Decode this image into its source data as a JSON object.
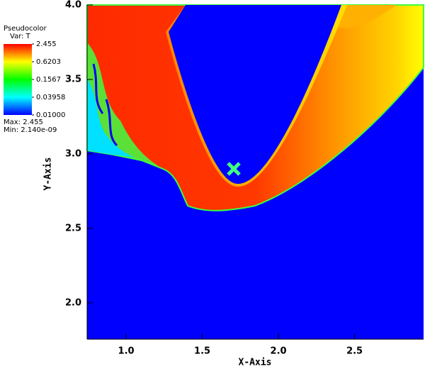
{
  "chart_data": {
    "type": "pseudocolor",
    "legend_title": "Pseudocolor",
    "legend_var": "Var: T",
    "legend_max": "Max:  2.455",
    "legend_min": "Min:  2.140e-09",
    "x_label": "X-Axis",
    "y_label": "Y-Axis",
    "xlim": [
      0.744,
      2.953
    ],
    "ylim": [
      1.756,
      4.0
    ],
    "xticks": [
      {
        "value": 1.0,
        "label": "1.0"
      },
      1.5,
      {
        "value": 2.0,
        "label": "2.0"
      },
      2.5
    ],
    "yticks": [
      {
        "value": 2.0,
        "label": "2.0"
      },
      2.5,
      {
        "value": 3.0,
        "label": "3.0"
      },
      3.5,
      {
        "value": 4.0,
        "label": "4.0"
      }
    ],
    "colorbar": {
      "scale": "log",
      "range": [
        0.01,
        2.455
      ],
      "ticks": [
        2.455,
        0.6203,
        0.1567,
        0.03958,
        {
          "value": 0.01,
          "label": "0.01000"
        }
      ],
      "colors": [
        "#ff0000",
        "#ffff00",
        "#00ff00",
        "#00ffff",
        "#0000ff"
      ]
    }
  }
}
